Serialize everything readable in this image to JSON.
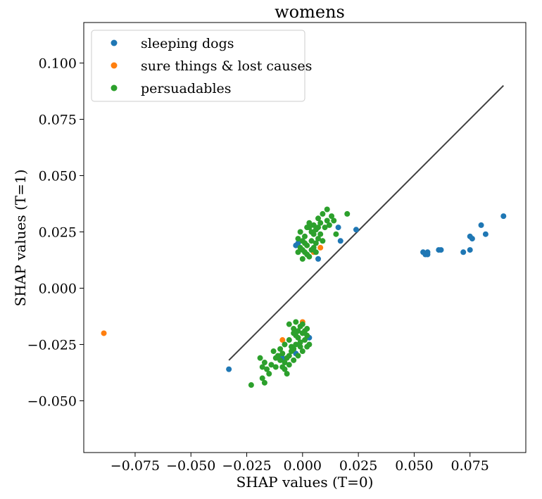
{
  "chart_data": {
    "type": "scatter",
    "title": "womens",
    "xlabel": "SHAP values (T=0)",
    "ylabel": "SHAP values (T=1)",
    "xlim": [
      -0.098,
      0.1
    ],
    "ylim": [
      -0.073,
      0.118
    ],
    "xticks": [
      -0.075,
      -0.05,
      -0.025,
      0.0,
      0.025,
      0.05,
      0.075
    ],
    "yticks": [
      -0.05,
      -0.025,
      0.0,
      0.025,
      0.05,
      0.075,
      0.1
    ],
    "xtick_labels": [
      "−0.075",
      "−0.050",
      "−0.025",
      "0.000",
      "0.025",
      "0.050",
      "0.075"
    ],
    "ytick_labels": [
      "−0.050",
      "−0.025",
      "0.000",
      "0.025",
      "0.050",
      "0.075",
      "0.100"
    ],
    "grid": false,
    "legend_position": "top-left",
    "colors": {
      "sleeping": "#1f77b4",
      "sure": "#ff7f0e",
      "persuadable": "#2ca02c",
      "line": "#404040"
    },
    "reference_line": {
      "x": [
        -0.033,
        0.09
      ],
      "y": [
        -0.032,
        0.09
      ]
    },
    "series": [
      {
        "name": "sleeping dogs",
        "color": "#1f77b4",
        "points": [
          [
            -0.033,
            -0.036
          ],
          [
            0.055,
            0.015
          ],
          [
            0.056,
            0.016
          ],
          [
            0.054,
            0.016
          ],
          [
            0.056,
            0.015
          ],
          [
            0.061,
            0.017
          ],
          [
            0.062,
            0.017
          ],
          [
            0.072,
            0.016
          ],
          [
            0.075,
            0.017
          ],
          [
            0.075,
            0.023
          ],
          [
            0.076,
            0.022
          ],
          [
            0.08,
            0.028
          ],
          [
            0.082,
            0.024
          ],
          [
            0.09,
            0.032
          ],
          [
            0.016,
            0.027
          ],
          [
            0.017,
            0.021
          ],
          [
            0.024,
            0.026
          ],
          [
            0.007,
            0.013
          ],
          [
            -0.003,
            0.019
          ],
          [
            -0.002,
            0.02
          ],
          [
            0.003,
            -0.022
          ],
          [
            -0.009,
            -0.031
          ],
          [
            -0.003,
            -0.029
          ]
        ]
      },
      {
        "name": "sure things & lost causes",
        "color": "#ff7f0e",
        "points": [
          [
            -0.089,
            -0.02
          ],
          [
            0.0,
            -0.015
          ],
          [
            -0.009,
            -0.023
          ],
          [
            0.008,
            0.018
          ],
          [
            0.005,
            0.016
          ]
        ]
      },
      {
        "name": "persuadables",
        "color": "#2ca02c",
        "points": [
          [
            0.0,
            0.017
          ],
          [
            0.002,
            0.019
          ],
          [
            0.004,
            0.021
          ],
          [
            0.001,
            0.023
          ],
          [
            -0.001,
            0.025
          ],
          [
            0.003,
            0.027
          ],
          [
            0.005,
            0.024
          ],
          [
            0.006,
            0.02
          ],
          [
            0.007,
            0.022
          ],
          [
            0.002,
            0.015
          ],
          [
            0.0,
            0.013
          ],
          [
            0.004,
            0.017
          ],
          [
            0.006,
            0.026
          ],
          [
            0.008,
            0.029
          ],
          [
            0.007,
            0.031
          ],
          [
            0.009,
            0.033
          ],
          [
            0.011,
            0.035
          ],
          [
            0.012,
            0.028
          ],
          [
            0.013,
            0.032
          ],
          [
            0.014,
            0.03
          ],
          [
            0.015,
            0.024
          ],
          [
            0.02,
            0.033
          ],
          [
            -0.002,
            0.022
          ],
          [
            -0.001,
            0.018
          ],
          [
            0.001,
            0.016
          ],
          [
            0.003,
            0.014
          ],
          [
            0.005,
            0.018
          ],
          [
            0.006,
            0.016
          ],
          [
            0.008,
            0.024
          ],
          [
            0.01,
            0.027
          ],
          [
            0.011,
            0.03
          ],
          [
            0.009,
            0.021
          ],
          [
            0.004,
            0.025
          ],
          [
            0.002,
            0.027
          ],
          [
            0.003,
            0.029
          ],
          [
            0.007,
            0.027
          ],
          [
            0.0,
            0.021
          ],
          [
            -0.002,
            0.016
          ],
          [
            0.001,
            0.02
          ],
          [
            0.005,
            0.028
          ],
          [
            0.0,
            -0.02
          ],
          [
            -0.002,
            -0.022
          ],
          [
            -0.001,
            -0.024
          ],
          [
            0.001,
            -0.023
          ],
          [
            0.002,
            -0.021
          ],
          [
            -0.003,
            -0.025
          ],
          [
            -0.004,
            -0.027
          ],
          [
            -0.005,
            -0.028
          ],
          [
            -0.006,
            -0.03
          ],
          [
            -0.007,
            -0.031
          ],
          [
            -0.008,
            -0.033
          ],
          [
            -0.009,
            -0.035
          ],
          [
            -0.01,
            -0.032
          ],
          [
            -0.011,
            -0.03
          ],
          [
            -0.012,
            -0.031
          ],
          [
            -0.013,
            -0.028
          ],
          [
            -0.014,
            -0.034
          ],
          [
            -0.015,
            -0.038
          ],
          [
            -0.016,
            -0.036
          ],
          [
            -0.017,
            -0.033
          ],
          [
            -0.018,
            -0.035
          ],
          [
            -0.018,
            -0.04
          ],
          [
            -0.017,
            -0.042
          ],
          [
            -0.019,
            -0.031
          ],
          [
            -0.023,
            -0.043
          ],
          [
            -0.004,
            -0.018
          ],
          [
            -0.006,
            -0.016
          ],
          [
            -0.003,
            -0.015
          ],
          [
            -0.001,
            -0.017
          ],
          [
            0.001,
            -0.019
          ],
          [
            0.002,
            -0.026
          ],
          [
            0.0,
            -0.028
          ],
          [
            -0.002,
            -0.03
          ],
          [
            -0.004,
            -0.032
          ],
          [
            -0.006,
            -0.034
          ],
          [
            -0.008,
            -0.036
          ],
          [
            -0.007,
            -0.038
          ],
          [
            -0.005,
            -0.026
          ],
          [
            -0.003,
            -0.021
          ],
          [
            -0.001,
            -0.026
          ],
          [
            0.003,
            -0.025
          ],
          [
            0.002,
            -0.018
          ],
          [
            -0.01,
            -0.027
          ],
          [
            -0.008,
            -0.025
          ],
          [
            -0.012,
            -0.035
          ],
          [
            -0.009,
            -0.029
          ],
          [
            -0.006,
            -0.023
          ],
          [
            -0.004,
            -0.02
          ],
          [
            0.0,
            -0.016
          ],
          [
            -0.002,
            -0.019
          ]
        ]
      }
    ]
  }
}
